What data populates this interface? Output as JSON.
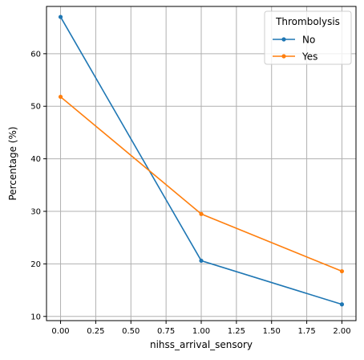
{
  "chart_data": {
    "type": "line",
    "title": "",
    "xlabel": "nihss_arrival_sensory",
    "ylabel": "Percentage (%)",
    "xlim": [
      -0.1,
      2.1
    ],
    "ylim": [
      9.2,
      69.0
    ],
    "x_ticks": [
      0.0,
      0.25,
      0.5,
      0.75,
      1.0,
      1.25,
      1.5,
      1.75,
      2.0
    ],
    "x_tick_labels": [
      "0.00",
      "0.25",
      "0.50",
      "0.75",
      "1.00",
      "1.25",
      "1.50",
      "1.75",
      "2.00"
    ],
    "y_ticks": [
      10,
      20,
      30,
      40,
      50,
      60
    ],
    "y_tick_labels": [
      "10",
      "20",
      "30",
      "40",
      "50",
      "60"
    ],
    "grid": true,
    "legend": {
      "title": "Thrombolysis",
      "placement": "top-right"
    },
    "x": [
      0,
      1,
      2
    ],
    "series": [
      {
        "name": "No",
        "color": "#1f77b4",
        "values": [
          67.0,
          20.6,
          12.3
        ]
      },
      {
        "name": "Yes",
        "color": "#ff7f0e",
        "values": [
          51.8,
          29.5,
          18.6
        ]
      }
    ]
  }
}
